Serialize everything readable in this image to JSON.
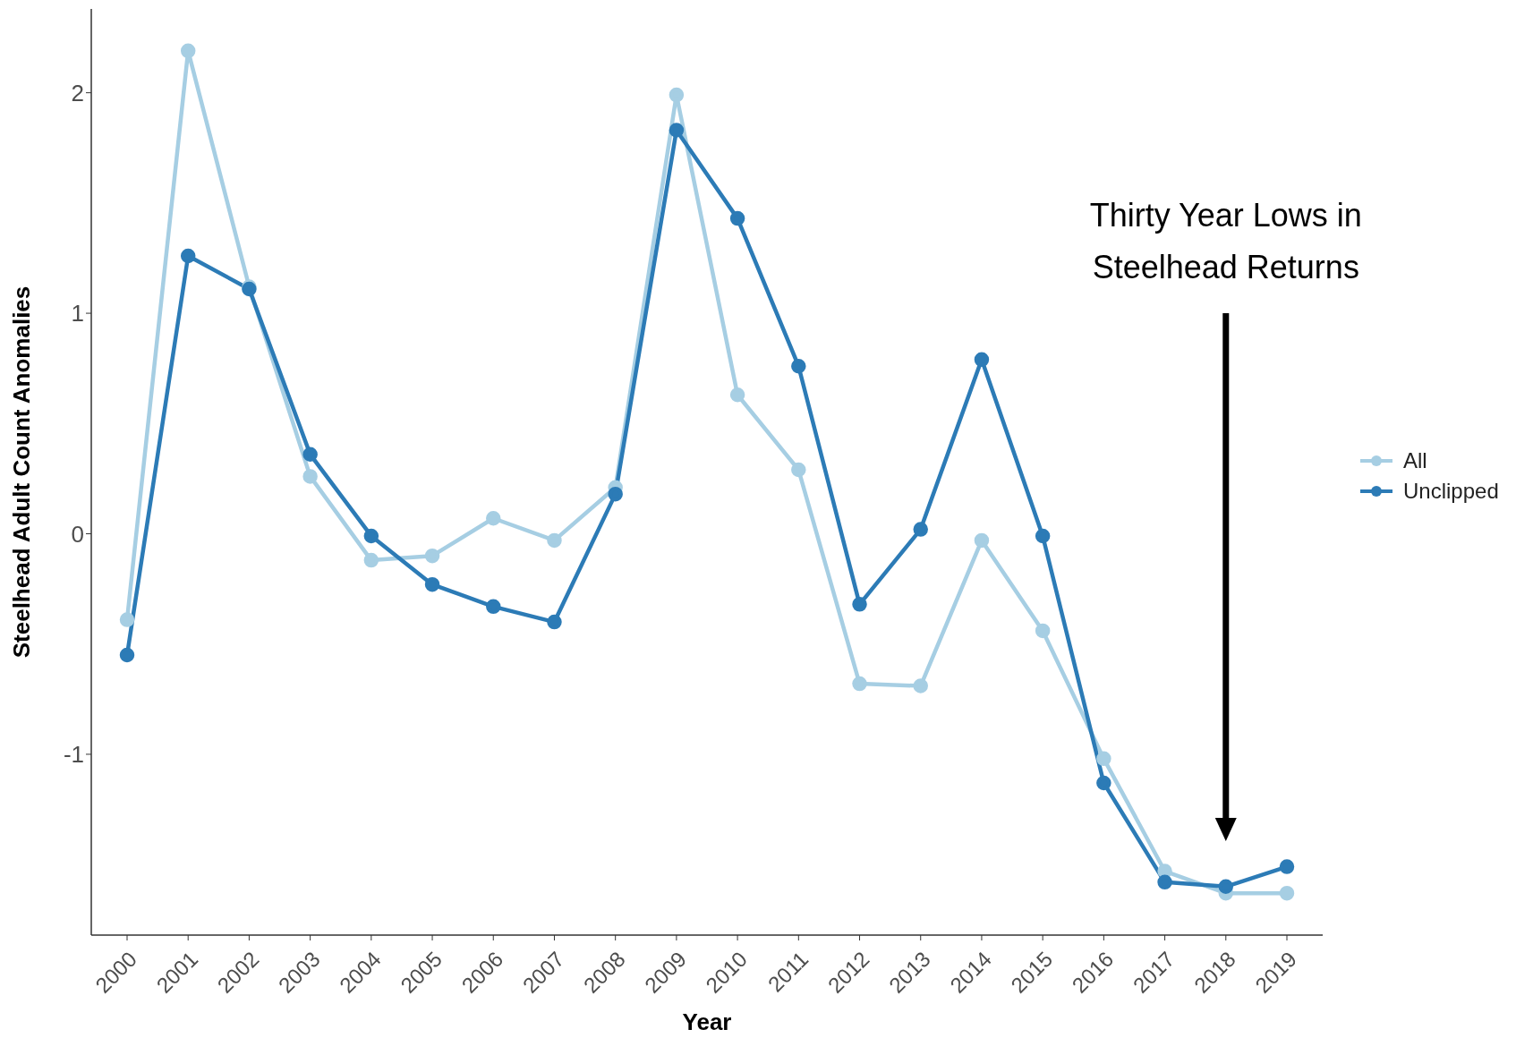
{
  "chart_data": {
    "type": "line",
    "xlabel": "Year",
    "ylabel": "Steelhead Adult Count Anomalies",
    "categories": [
      "2000",
      "2001",
      "2002",
      "2003",
      "2004",
      "2005",
      "2006",
      "2007",
      "2008",
      "2009",
      "2010",
      "2011",
      "2012",
      "2013",
      "2014",
      "2015",
      "2016",
      "2017",
      "2018",
      "2019"
    ],
    "series": [
      {
        "name": "All",
        "color": "#a6cee3",
        "values": [
          -0.39,
          2.19,
          1.12,
          0.26,
          -0.12,
          -0.1,
          0.07,
          -0.03,
          0.21,
          1.99,
          0.63,
          0.29,
          -0.68,
          -0.69,
          -0.03,
          -0.44,
          -1.02,
          -1.53,
          -1.63,
          -1.63
        ]
      },
      {
        "name": "Unclipped",
        "color": "#2c7bb6",
        "values": [
          -0.55,
          1.26,
          1.11,
          0.36,
          -0.01,
          -0.23,
          -0.33,
          -0.4,
          0.18,
          1.83,
          1.43,
          0.76,
          -0.32,
          0.02,
          0.79,
          -0.01,
          -1.13,
          -1.58,
          -1.6,
          -1.51
        ]
      }
    ],
    "ylim": [
      -1.82,
      2.38
    ],
    "yticks": [
      -1,
      0,
      1,
      2
    ],
    "grid": false,
    "legend": "right",
    "marker": "circle",
    "line_style": "solid",
    "annotations": [
      "Thirty Year Lows in Steelhead Returns"
    ]
  }
}
